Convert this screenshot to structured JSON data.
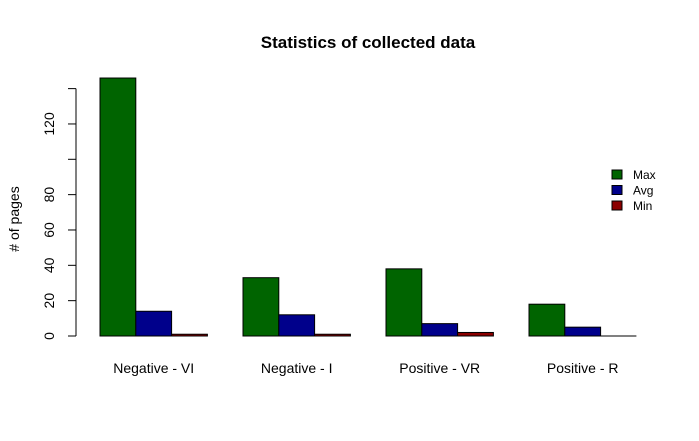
{
  "chart_data": {
    "type": "bar",
    "title": "Statistics of collected data",
    "xlabel": "",
    "ylabel": "# of pages",
    "categories": [
      "Negative - VI",
      "Negative - I",
      "Positive - VR",
      "Positive - R"
    ],
    "series": [
      {
        "name": "Max",
        "color": "#006400",
        "values": [
          146,
          33,
          38,
          18
        ]
      },
      {
        "name": "Avg",
        "color": "#00008B",
        "values": [
          14,
          12,
          7,
          5
        ]
      },
      {
        "name": "Min",
        "color": "#8B0000",
        "values": [
          1,
          1,
          2,
          0
        ]
      }
    ],
    "yticks": [
      0,
      20,
      40,
      60,
      80,
      120
    ],
    "ylim": [
      0,
      146
    ],
    "legend_position": "right",
    "grid": false
  }
}
